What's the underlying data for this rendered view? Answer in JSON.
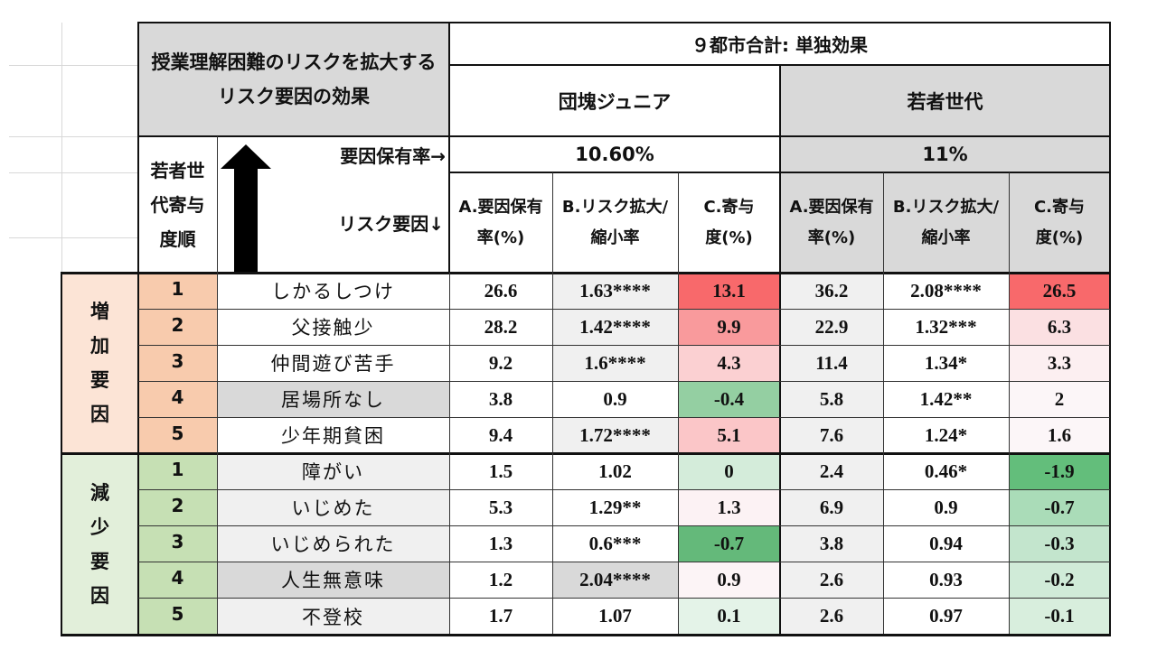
{
  "header": {
    "title": "授業理解困難のリスクを拡大するリスク要因の効果",
    "top": "９都市合計: 単独効果",
    "group_junior": "団塊ジュニア",
    "group_young": "若者世代",
    "prevalence_label": "要因保有率→",
    "prevalence_junior": "10.60%",
    "prevalence_young": "11%",
    "rank_label": "若者世代寄与度順",
    "risk_label": "リスク要因↓",
    "colA": "A.要因保有率(%)",
    "colB": "B.リスク拡大/縮小率",
    "colC": "C.寄与度(%)"
  },
  "groups": [
    {
      "label": "増加要因",
      "rows": [
        {
          "rank": "1",
          "factor": "しかるしつけ",
          "a1": "26.6",
          "b1": "1.63****",
          "c1": "13.1",
          "a2": "36.2",
          "b2": "2.08****",
          "c2": "26.5"
        },
        {
          "rank": "2",
          "factor": "父接触少",
          "a1": "28.2",
          "b1": "1.42****",
          "c1": "9.9",
          "a2": "22.9",
          "b2": "1.32***",
          "c2": "6.3"
        },
        {
          "rank": "3",
          "factor": "仲間遊び苦手",
          "a1": "9.2",
          "b1": "1.6****",
          "c1": "4.3",
          "a2": "11.4",
          "b2": "1.34*",
          "c2": "3.3"
        },
        {
          "rank": "4",
          "factor": "居場所なし",
          "a1": "3.8",
          "b1": "0.9",
          "c1": "-0.4",
          "a2": "5.8",
          "b2": "1.42**",
          "c2": "2"
        },
        {
          "rank": "5",
          "factor": "少年期貧困",
          "a1": "9.4",
          "b1": "1.72****",
          "c1": "5.1",
          "a2": "7.6",
          "b2": "1.24*",
          "c2": "1.6"
        }
      ]
    },
    {
      "label": "減少要因",
      "rows": [
        {
          "rank": "1",
          "factor": "障がい",
          "a1": "1.5",
          "b1": "1.02",
          "c1": "0",
          "a2": "2.4",
          "b2": "0.46*",
          "c2": "-1.9"
        },
        {
          "rank": "2",
          "factor": "いじめた",
          "a1": "5.3",
          "b1": "1.29**",
          "c1": "1.3",
          "a2": "6.9",
          "b2": "0.9",
          "c2": "-0.7"
        },
        {
          "rank": "3",
          "factor": "いじめられた",
          "a1": "1.3",
          "b1": "0.6***",
          "c1": "-0.7",
          "a2": "3.8",
          "b2": "0.94",
          "c2": "-0.3"
        },
        {
          "rank": "4",
          "factor": "人生無意味",
          "a1": "1.2",
          "b1": "2.04****",
          "c1": "0.9",
          "a2": "2.6",
          "b2": "0.93",
          "c2": "-0.2"
        },
        {
          "rank": "5",
          "factor": "不登校",
          "a1": "1.7",
          "b1": "1.07",
          "c1": "0.1",
          "a2": "2.6",
          "b2": "0.97",
          "c2": "-0.1"
        }
      ]
    }
  ],
  "colors": {
    "increase_group": "#fce4d6",
    "increase_rank": "#f8cbad",
    "decrease_group": "#e2efda",
    "decrease_rank": "#c6e0b4",
    "header_gray": "#d9d9d9",
    "young_gray": "#d9d9d9",
    "cell_light": "#f0f0f0"
  }
}
